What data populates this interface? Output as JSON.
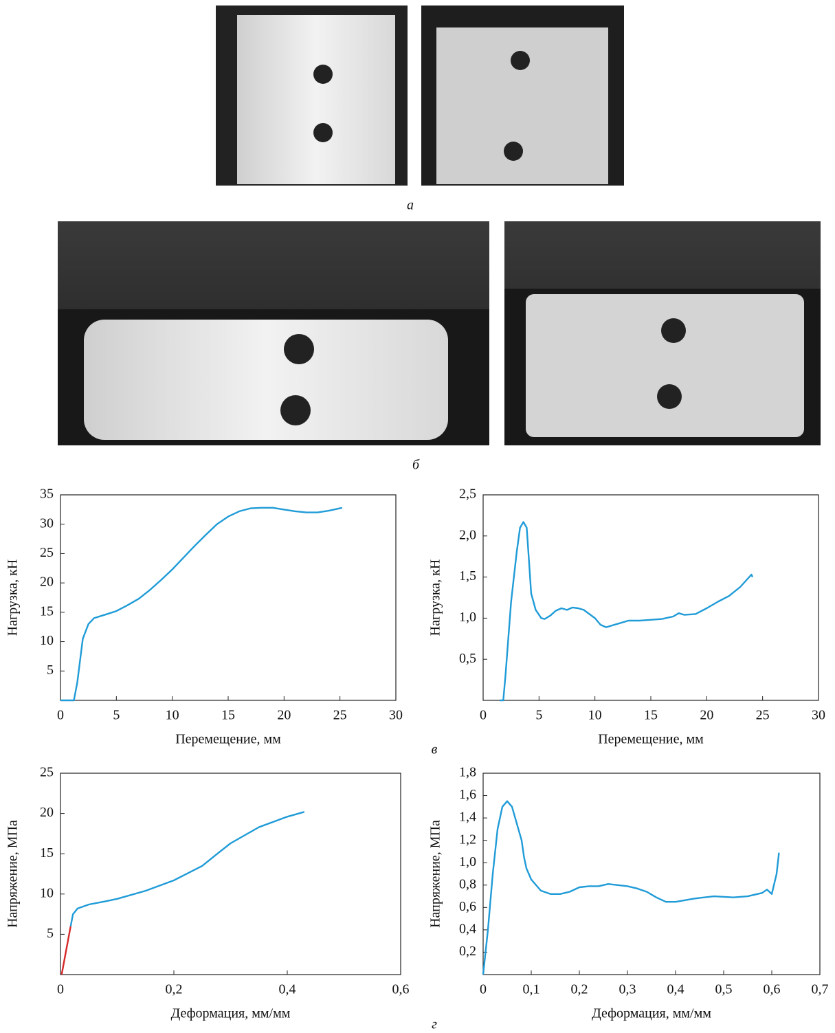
{
  "figure_labels": [
    "а",
    "б",
    "в",
    "г"
  ],
  "chart_data": [
    {
      "type": "line",
      "xlabel": "Перемещение, мм",
      "ylabel": "Нагрузка, кН",
      "xlim": [
        0,
        30
      ],
      "ylim": [
        0,
        35
      ],
      "xticks": [
        0,
        5,
        10,
        15,
        20,
        25,
        30
      ],
      "yticks": [
        5,
        10,
        15,
        20,
        25,
        30,
        35
      ],
      "series": [
        {
          "color": "#1f9bd7",
          "x": [
            0,
            1.2,
            1.5,
            2,
            2.5,
            3,
            4,
            5,
            6,
            7,
            8,
            9,
            10,
            11,
            12,
            13,
            14,
            15,
            16,
            17,
            18,
            19,
            20,
            21,
            22,
            23,
            24,
            25.2
          ],
          "values": [
            0,
            0,
            3,
            10.5,
            13,
            14,
            14.6,
            15.2,
            16.2,
            17.3,
            18.8,
            20.5,
            22.3,
            24.3,
            26.3,
            28.2,
            30,
            31.3,
            32.2,
            32.7,
            32.8,
            32.8,
            32.5,
            32.2,
            32,
            32,
            32.3,
            32.8
          ]
        }
      ]
    },
    {
      "type": "line",
      "xlabel": "Перемещение, мм",
      "ylabel": "Нагрузка, кН",
      "xlim": [
        0,
        30
      ],
      "ylim": [
        0,
        2.5
      ],
      "xticks": [
        0,
        5,
        10,
        15,
        20,
        25,
        30
      ],
      "yticks": [
        {
          "value": 0.5,
          "label": "0,5"
        },
        {
          "value": 1,
          "label": "1,0"
        },
        {
          "value": 1.5,
          "label": "1,5"
        },
        {
          "value": 2,
          "label": "2,0"
        },
        {
          "value": 2.5,
          "label": "2,5"
        }
      ],
      "series": [
        {
          "color": "#1f9bd7",
          "x": [
            1.5,
            1.8,
            2,
            2.5,
            3,
            3.3,
            3.6,
            3.9,
            4.1,
            4.3,
            4.7,
            5.2,
            5.5,
            6,
            6.5,
            7,
            7.5,
            8,
            8.5,
            9,
            9.5,
            10,
            10.5,
            11,
            12,
            13,
            14,
            15,
            16,
            17,
            17.5,
            18,
            19,
            20,
            21,
            22,
            23,
            24,
            24.1
          ],
          "values": [
            0,
            0,
            0.3,
            1.2,
            1.8,
            2.1,
            2.17,
            2.1,
            1.7,
            1.3,
            1.1,
            1.0,
            0.99,
            1.03,
            1.09,
            1.12,
            1.1,
            1.13,
            1.12,
            1.1,
            1.05,
            1.0,
            0.92,
            0.89,
            0.93,
            0.97,
            0.97,
            0.98,
            0.99,
            1.02,
            1.06,
            1.04,
            1.05,
            1.12,
            1.2,
            1.27,
            1.38,
            1.53,
            1.5
          ]
        }
      ]
    },
    {
      "type": "line",
      "xlabel": "Деформация, мм/мм",
      "ylabel": "Напряжение, МПа",
      "xlim": [
        0,
        0.6
      ],
      "ylim": [
        0,
        25
      ],
      "xticks": [
        0,
        {
          "value": 0.2,
          "label": "0,2"
        },
        {
          "value": 0.4,
          "label": "0,4"
        },
        {
          "value": 0.6,
          "label": "0,6"
        }
      ],
      "yticks": [
        5,
        10,
        15,
        20,
        25
      ],
      "series": [
        {
          "color": "#d62728",
          "x": [
            0.002,
            0.018
          ],
          "values": [
            0,
            6
          ]
        },
        {
          "color": "#1f9bd7",
          "x": [
            0.018,
            0.022,
            0.03,
            0.05,
            0.08,
            0.1,
            0.15,
            0.2,
            0.25,
            0.28,
            0.3,
            0.35,
            0.4,
            0.43
          ],
          "values": [
            6,
            7.5,
            8.2,
            8.7,
            9.1,
            9.4,
            10.4,
            11.7,
            13.5,
            15.2,
            16.3,
            18.3,
            19.6,
            20.2
          ]
        }
      ]
    },
    {
      "type": "line",
      "xlabel": "Деформация, мм/мм",
      "ylabel": "Напряжение, МПа",
      "xlim": [
        0,
        0.7
      ],
      "ylim": [
        0,
        1.8
      ],
      "xticks": [
        0,
        {
          "value": 0.1,
          "label": "0,1"
        },
        {
          "value": 0.2,
          "label": "0,2"
        },
        {
          "value": 0.3,
          "label": "0,3"
        },
        {
          "value": 0.4,
          "label": "0,4"
        },
        {
          "value": 0.5,
          "label": "0,5"
        },
        {
          "value": 0.6,
          "label": "0,6"
        },
        {
          "value": 0.7,
          "label": "0,7"
        }
      ],
      "yticks": [
        {
          "value": 0.2,
          "label": "0,2"
        },
        {
          "value": 0.4,
          "label": "0,4"
        },
        {
          "value": 0.6,
          "label": "0,6"
        },
        {
          "value": 0.8,
          "label": "0,8"
        },
        {
          "value": 1,
          "label": "1,0"
        },
        {
          "value": 1.2,
          "label": "1,2"
        },
        {
          "value": 1.4,
          "label": "1,4"
        },
        {
          "value": 1.6,
          "label": "1,6"
        },
        {
          "value": 1.8,
          "label": "1,8"
        }
      ],
      "series": [
        {
          "color": "#1f9bd7",
          "x": [
            0,
            0.01,
            0.02,
            0.03,
            0.04,
            0.05,
            0.06,
            0.07,
            0.08,
            0.085,
            0.09,
            0.1,
            0.12,
            0.14,
            0.16,
            0.18,
            0.2,
            0.22,
            0.24,
            0.26,
            0.28,
            0.3,
            0.32,
            0.34,
            0.36,
            0.38,
            0.4,
            0.44,
            0.48,
            0.52,
            0.55,
            0.58,
            0.59,
            0.6,
            0.61,
            0.615
          ],
          "values": [
            0,
            0.4,
            0.9,
            1.3,
            1.5,
            1.55,
            1.5,
            1.35,
            1.2,
            1.05,
            0.95,
            0.85,
            0.75,
            0.72,
            0.72,
            0.74,
            0.78,
            0.79,
            0.79,
            0.81,
            0.8,
            0.79,
            0.77,
            0.74,
            0.69,
            0.65,
            0.65,
            0.68,
            0.7,
            0.69,
            0.7,
            0.73,
            0.76,
            0.72,
            0.9,
            1.09
          ]
        }
      ]
    }
  ]
}
